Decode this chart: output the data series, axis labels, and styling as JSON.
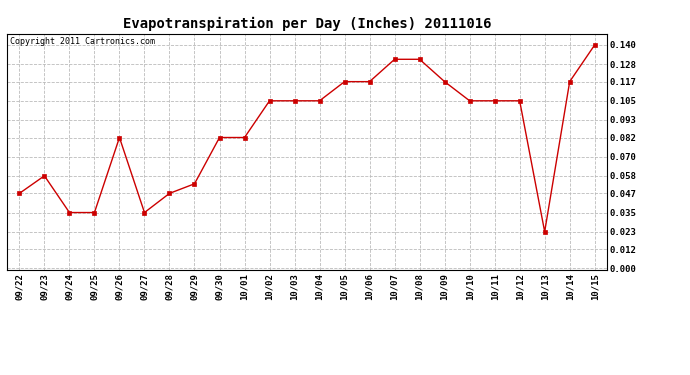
{
  "title": "Evapotranspiration per Day (Inches) 20111016",
  "copyright": "Copyright 2011 Cartronics.com",
  "x_labels": [
    "09/22",
    "09/23",
    "09/24",
    "09/25",
    "09/26",
    "09/27",
    "09/28",
    "09/29",
    "09/30",
    "10/01",
    "10/02",
    "10/03",
    "10/04",
    "10/05",
    "10/06",
    "10/07",
    "10/08",
    "10/09",
    "10/10",
    "10/11",
    "10/12",
    "10/13",
    "10/14",
    "10/15"
  ],
  "y_values": [
    0.047,
    0.058,
    0.035,
    0.035,
    0.082,
    0.035,
    0.047,
    0.053,
    0.082,
    0.082,
    0.105,
    0.105,
    0.105,
    0.117,
    0.117,
    0.131,
    0.131,
    0.117,
    0.105,
    0.105,
    0.105,
    0.023,
    0.117,
    0.14
  ],
  "line_color": "#cc0000",
  "marker": "s",
  "marker_size": 2.5,
  "yticks": [
    0.0,
    0.012,
    0.023,
    0.035,
    0.047,
    0.058,
    0.07,
    0.082,
    0.093,
    0.105,
    0.117,
    0.128,
    0.14
  ],
  "background_color": "#ffffff",
  "grid_color": "#bbbbbb",
  "title_fontsize": 10,
  "copyright_fontsize": 6,
  "tick_fontsize": 6.5,
  "ylim_low": -0.001,
  "ylim_high": 0.147
}
